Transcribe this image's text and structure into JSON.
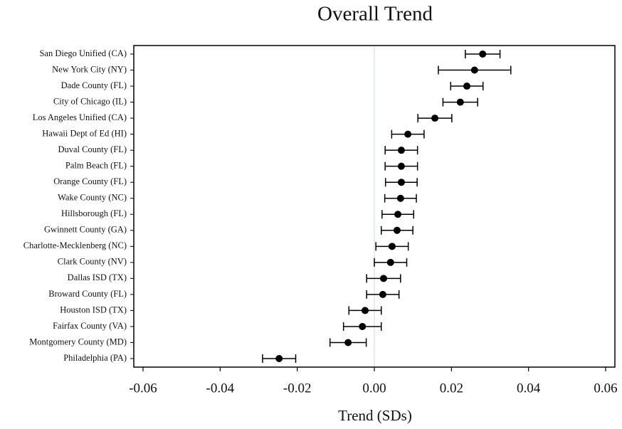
{
  "chart_data": {
    "type": "dot",
    "title": "Overall Trend",
    "x_label": "Trend (SDs)",
    "categories": [
      "San Diego Unified (CA)",
      "New York City (NY)",
      "Dade County (FL)",
      "City of Chicago (IL)",
      "Los Angeles Unified (CA)",
      "Hawaii Dept of Ed (HI)",
      "Duval County (FL)",
      "Palm Beach (FL)",
      "Orange County (FL)",
      "Wake County (NC)",
      "Hillsborough (FL)",
      "Gwinnett County (GA)",
      "Charlotte-Mecklenberg (NC)",
      "Clark County (NV)",
      "Dallas ISD (TX)",
      "Broward County (FL)",
      "Houston ISD (TX)",
      "Fairfax County (VA)",
      "Montgomery County (MD)",
      "Philadelphia (PA)"
    ],
    "values": [
      0.0281,
      0.026,
      0.024,
      0.0223,
      0.0157,
      0.0087,
      0.007,
      0.007,
      0.007,
      0.0068,
      0.0061,
      0.0059,
      0.0046,
      0.0042,
      0.0024,
      0.0022,
      -0.0024,
      -0.0031,
      -0.0068,
      -0.0247
    ],
    "errors": [
      0.0045,
      0.0094,
      0.0042,
      0.0045,
      0.0044,
      0.0042,
      0.0042,
      0.0042,
      0.0041,
      0.0041,
      0.0041,
      0.0041,
      0.0042,
      0.0042,
      0.0044,
      0.0042,
      0.0042,
      0.0049,
      0.0047,
      0.0043
    ],
    "color": "#000000",
    "xlim": [
      -0.0624,
      0.0624
    ],
    "xticks": [
      -0.06,
      -0.04,
      -0.02,
      {
        "value": 0,
        "label": "0.00"
      },
      0.02,
      0.04,
      0.06
    ]
  }
}
